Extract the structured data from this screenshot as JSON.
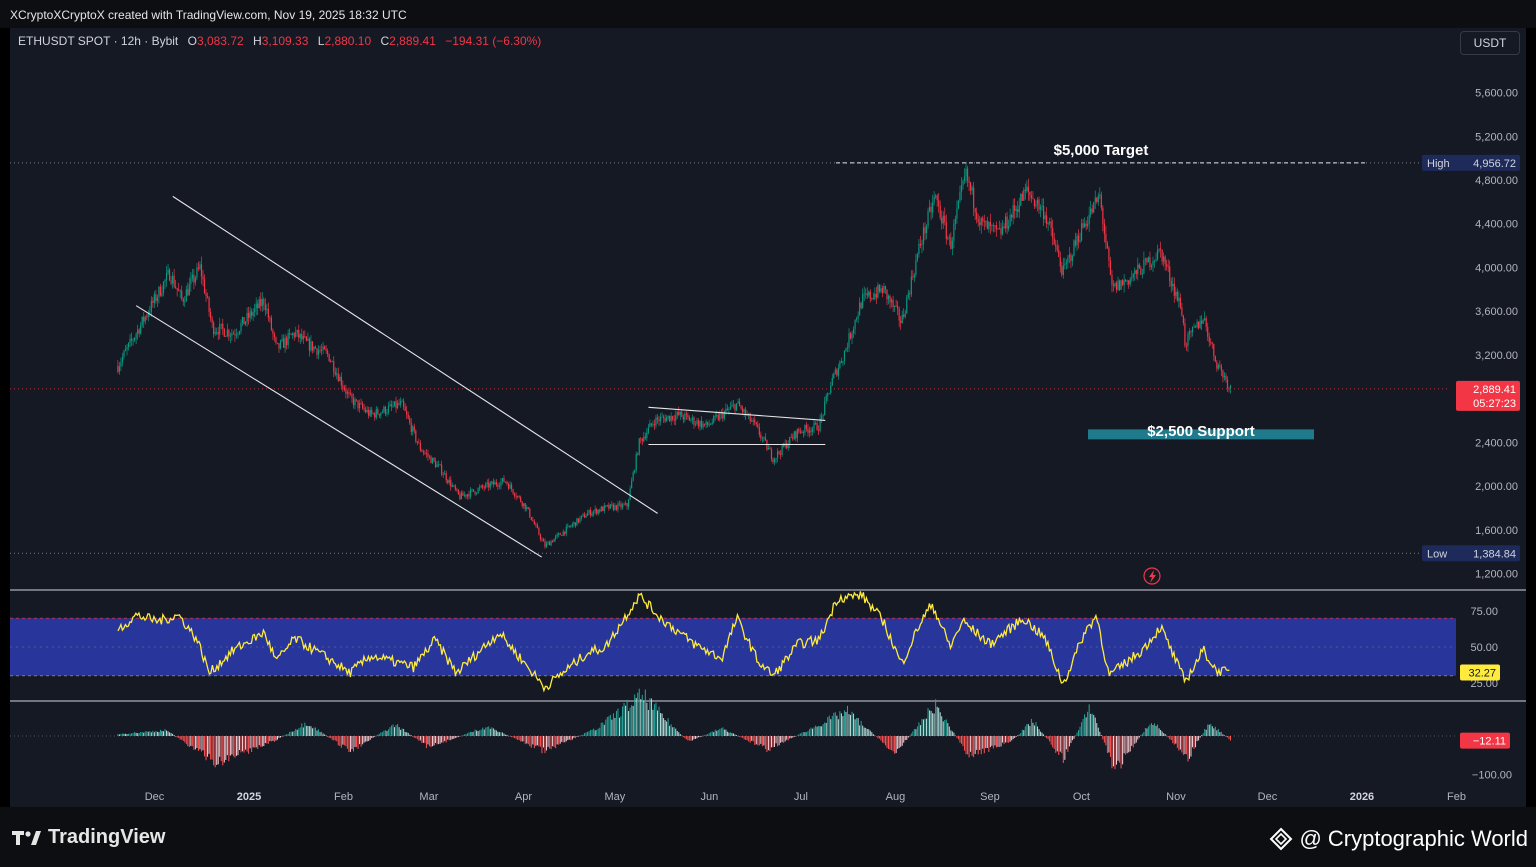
{
  "header": {
    "credit": "XCryptoXCryptoX created with TradingView.com, Nov 19, 2025 18:32 UTC"
  },
  "legend": {
    "symbol": "ETHUSDT SPOT · 12h · Bybit",
    "open_label": "O",
    "open": "3,083.72",
    "high_label": "H",
    "high": "3,109.33",
    "low_label": "L",
    "low": "2,880.10",
    "close_label": "C",
    "close": "2,889.41",
    "change": "−194.31 (−6.30%)"
  },
  "currency_button": "USDT",
  "footer": {
    "brand": "TradingView",
    "watermark": "@ Cryptographic World"
  },
  "colors": {
    "up": "#089981",
    "down": "#f23645",
    "rsi": "#ffeb3b",
    "rsi_band": "#2a3aa8",
    "support_zone": "#1f7a8c",
    "background": "#151924"
  },
  "chart_data": [
    {
      "type": "candlestick",
      "symbol": "ETHUSDT",
      "interval": "12h",
      "y_axis_ticks": [
        "5,600.00",
        "5,200.00",
        "4,800.00",
        "4,400.00",
        "4,000.00",
        "3,600.00",
        "3,200.00",
        "2,400.00",
        "2,000.00",
        "1,600.00",
        "1,200.00"
      ],
      "x_axis_ticks": [
        "Dec",
        "2025",
        "Feb",
        "Mar",
        "Apr",
        "May",
        "Jun",
        "Jul",
        "Aug",
        "Sep",
        "Oct",
        "Nov",
        "Dec",
        "2026",
        "Feb"
      ],
      "ylim": [
        1100,
        5750
      ],
      "close_series": [
        {
          "date": "2024-11-19",
          "close": 3100
        },
        {
          "date": "2024-11-24",
          "close": 3350
        },
        {
          "date": "2024-11-30",
          "close": 3650
        },
        {
          "date": "2024-12-06",
          "close": 3950
        },
        {
          "date": "2024-12-10",
          "close": 3700
        },
        {
          "date": "2024-12-16",
          "close": 4000
        },
        {
          "date": "2024-12-20",
          "close": 3450
        },
        {
          "date": "2024-12-27",
          "close": 3400
        },
        {
          "date": "2025-01-06",
          "close": 3700
        },
        {
          "date": "2025-01-10",
          "close": 3250
        },
        {
          "date": "2025-01-16",
          "close": 3400
        },
        {
          "date": "2025-01-20",
          "close": 3300
        },
        {
          "date": "2025-01-27",
          "close": 3200
        },
        {
          "date": "2025-02-03",
          "close": 2800
        },
        {
          "date": "2025-02-10",
          "close": 2650
        },
        {
          "date": "2025-02-20",
          "close": 2750
        },
        {
          "date": "2025-02-26",
          "close": 2350
        },
        {
          "date": "2025-03-05",
          "close": 2150
        },
        {
          "date": "2025-03-11",
          "close": 1900
        },
        {
          "date": "2025-03-20",
          "close": 2000
        },
        {
          "date": "2025-03-26",
          "close": 2050
        },
        {
          "date": "2025-04-02",
          "close": 1800
        },
        {
          "date": "2025-04-08",
          "close": 1450
        },
        {
          "date": "2025-04-15",
          "close": 1600
        },
        {
          "date": "2025-04-22",
          "close": 1750
        },
        {
          "date": "2025-04-28",
          "close": 1800
        },
        {
          "date": "2025-05-05",
          "close": 1820
        },
        {
          "date": "2025-05-09",
          "close": 2400
        },
        {
          "date": "2025-05-14",
          "close": 2600
        },
        {
          "date": "2025-05-22",
          "close": 2650
        },
        {
          "date": "2025-05-31",
          "close": 2550
        },
        {
          "date": "2025-06-10",
          "close": 2750
        },
        {
          "date": "2025-06-16",
          "close": 2550
        },
        {
          "date": "2025-06-22",
          "close": 2250
        },
        {
          "date": "2025-06-30",
          "close": 2500
        },
        {
          "date": "2025-07-07",
          "close": 2550
        },
        {
          "date": "2025-07-11",
          "close": 2950
        },
        {
          "date": "2025-07-15",
          "close": 3200
        },
        {
          "date": "2025-07-21",
          "close": 3700
        },
        {
          "date": "2025-07-28",
          "close": 3800
        },
        {
          "date": "2025-08-03",
          "close": 3500
        },
        {
          "date": "2025-08-09",
          "close": 4200
        },
        {
          "date": "2025-08-14",
          "close": 4650
        },
        {
          "date": "2025-08-19",
          "close": 4200
        },
        {
          "date": "2025-08-24",
          "close": 4850
        },
        {
          "date": "2025-08-29",
          "close": 4400
        },
        {
          "date": "2025-09-04",
          "close": 4300
        },
        {
          "date": "2025-09-13",
          "close": 4700
        },
        {
          "date": "2025-09-19",
          "close": 4500
        },
        {
          "date": "2025-09-25",
          "close": 3950
        },
        {
          "date": "2025-10-01",
          "close": 4350
        },
        {
          "date": "2025-10-07",
          "close": 4650
        },
        {
          "date": "2025-10-11",
          "close": 3800
        },
        {
          "date": "2025-10-17",
          "close": 3900
        },
        {
          "date": "2025-10-27",
          "close": 4150
        },
        {
          "date": "2025-11-03",
          "close": 3600
        },
        {
          "date": "2025-11-04",
          "close": 3300
        },
        {
          "date": "2025-11-10",
          "close": 3550
        },
        {
          "date": "2025-11-14",
          "close": 3150
        },
        {
          "date": "2025-11-19",
          "close": 2890
        }
      ],
      "last_price_label": "2,889.41",
      "countdown_label": "05:27:23",
      "high_label": "High",
      "high_value": "4,956.72",
      "low_label": "Low",
      "low_value": "1,384.84",
      "annotations": [
        {
          "text": "$5,000 Target",
          "price": 4956.72
        },
        {
          "text": "$2,500 Support",
          "price_range": [
            2400,
            2500
          ]
        }
      ],
      "trendlines": [
        {
          "name": "falling-wedge-upper",
          "from": {
            "date": "2024-12-07",
            "price": 4650
          },
          "to": {
            "date": "2025-05-15",
            "price": 1750
          }
        },
        {
          "name": "falling-wedge-lower",
          "from": {
            "date": "2024-11-25",
            "price": 3650
          },
          "to": {
            "date": "2025-04-07",
            "price": 1350
          }
        },
        {
          "name": "flag-upper",
          "from": {
            "date": "2025-05-12",
            "price": 2720
          },
          "to": {
            "date": "2025-07-09",
            "price": 2600
          }
        },
        {
          "name": "flag-lower",
          "from": {
            "date": "2025-05-12",
            "price": 2380
          },
          "to": {
            "date": "2025-07-09",
            "price": 2380
          }
        }
      ],
      "grid": false
    },
    {
      "type": "line",
      "name": "RSI",
      "y_axis_ticks": [
        "75.00",
        "50.00",
        "25.00"
      ],
      "band": [
        30,
        70
      ],
      "ylim": [
        16,
        92
      ],
      "last_value_label": "32.27",
      "values": [
        {
          "date": "2024-11-19",
          "value": 62
        },
        {
          "date": "2024-11-25",
          "value": 72
        },
        {
          "date": "2024-12-02",
          "value": 68
        },
        {
          "date": "2024-12-09",
          "value": 72
        },
        {
          "date": "2024-12-15",
          "value": 55
        },
        {
          "date": "2024-12-19",
          "value": 32
        },
        {
          "date": "2024-12-27",
          "value": 48
        },
        {
          "date": "2025-01-06",
          "value": 60
        },
        {
          "date": "2025-01-10",
          "value": 40
        },
        {
          "date": "2025-01-16",
          "value": 56
        },
        {
          "date": "2025-01-27",
          "value": 42
        },
        {
          "date": "2025-02-03",
          "value": 32
        },
        {
          "date": "2025-02-10",
          "value": 44
        },
        {
          "date": "2025-02-24",
          "value": 36
        },
        {
          "date": "2025-03-03",
          "value": 55
        },
        {
          "date": "2025-03-10",
          "value": 32
        },
        {
          "date": "2025-03-24",
          "value": 60
        },
        {
          "date": "2025-04-08",
          "value": 22
        },
        {
          "date": "2025-04-22",
          "value": 46
        },
        {
          "date": "2025-04-28",
          "value": 50
        },
        {
          "date": "2025-05-09",
          "value": 86
        },
        {
          "date": "2025-05-16",
          "value": 70
        },
        {
          "date": "2025-05-27",
          "value": 52
        },
        {
          "date": "2025-06-05",
          "value": 42
        },
        {
          "date": "2025-06-10",
          "value": 70
        },
        {
          "date": "2025-06-17",
          "value": 40
        },
        {
          "date": "2025-06-22",
          "value": 30
        },
        {
          "date": "2025-06-30",
          "value": 52
        },
        {
          "date": "2025-07-07",
          "value": 55
        },
        {
          "date": "2025-07-13",
          "value": 84
        },
        {
          "date": "2025-07-21",
          "value": 86
        },
        {
          "date": "2025-07-28",
          "value": 68
        },
        {
          "date": "2025-08-03",
          "value": 38
        },
        {
          "date": "2025-08-09",
          "value": 66
        },
        {
          "date": "2025-08-13",
          "value": 80
        },
        {
          "date": "2025-08-19",
          "value": 50
        },
        {
          "date": "2025-08-23",
          "value": 68
        },
        {
          "date": "2025-09-01",
          "value": 52
        },
        {
          "date": "2025-09-12",
          "value": 70
        },
        {
          "date": "2025-09-19",
          "value": 56
        },
        {
          "date": "2025-09-25",
          "value": 24
        },
        {
          "date": "2025-10-02",
          "value": 60
        },
        {
          "date": "2025-10-06",
          "value": 72
        },
        {
          "date": "2025-10-10",
          "value": 30
        },
        {
          "date": "2025-10-21",
          "value": 48
        },
        {
          "date": "2025-10-27",
          "value": 64
        },
        {
          "date": "2025-11-04",
          "value": 26
        },
        {
          "date": "2025-11-10",
          "value": 48
        },
        {
          "date": "2025-11-14",
          "value": 34
        },
        {
          "date": "2025-11-19",
          "value": 32
        }
      ]
    },
    {
      "type": "bar",
      "name": "MACD histogram",
      "y_axis_ticks": [
        "−100.00"
      ],
      "ylim": [
        -110,
        120
      ],
      "last_value_label": "−12.11",
      "values": [
        {
          "date": "2024-11-19",
          "value": 5
        },
        {
          "date": "2024-12-05",
          "value": 15
        },
        {
          "date": "2024-12-21",
          "value": -70
        },
        {
          "date": "2025-01-10",
          "value": -10
        },
        {
          "date": "2025-01-20",
          "value": 35
        },
        {
          "date": "2025-02-03",
          "value": -40
        },
        {
          "date": "2025-02-18",
          "value": 30
        },
        {
          "date": "2025-03-01",
          "value": -30
        },
        {
          "date": "2025-03-20",
          "value": 25
        },
        {
          "date": "2025-04-08",
          "value": -40
        },
        {
          "date": "2025-04-25",
          "value": 20
        },
        {
          "date": "2025-05-10",
          "value": 105
        },
        {
          "date": "2025-05-25",
          "value": -15
        },
        {
          "date": "2025-06-05",
          "value": 20
        },
        {
          "date": "2025-06-20",
          "value": -35
        },
        {
          "date": "2025-07-02",
          "value": 10
        },
        {
          "date": "2025-07-16",
          "value": 65
        },
        {
          "date": "2025-08-01",
          "value": -45
        },
        {
          "date": "2025-08-14",
          "value": 80
        },
        {
          "date": "2025-08-25",
          "value": -50
        },
        {
          "date": "2025-09-08",
          "value": -15
        },
        {
          "date": "2025-09-15",
          "value": 40
        },
        {
          "date": "2025-09-25",
          "value": -60
        },
        {
          "date": "2025-10-04",
          "value": 75
        },
        {
          "date": "2025-10-12",
          "value": -90
        },
        {
          "date": "2025-10-24",
          "value": 40
        },
        {
          "date": "2025-11-05",
          "value": -55
        },
        {
          "date": "2025-11-12",
          "value": 35
        },
        {
          "date": "2025-11-19",
          "value": -12
        }
      ]
    }
  ]
}
